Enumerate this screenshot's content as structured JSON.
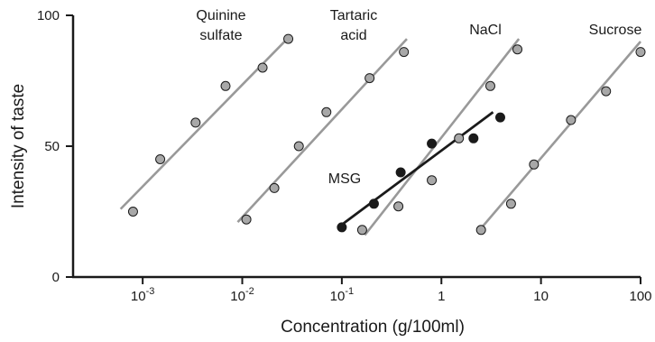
{
  "chart_data": {
    "type": "scatter",
    "title": "",
    "xlabel": "Concentration (g/100ml)",
    "ylabel": "Intensity of taste",
    "x_scale": "log",
    "xlim": [
      0.0002,
      100
    ],
    "ylim": [
      0,
      100
    ],
    "x_ticks": [
      {
        "value": 0.001,
        "base": "10",
        "exp": "-3"
      },
      {
        "value": 0.01,
        "base": "10",
        "exp": "-2"
      },
      {
        "value": 0.1,
        "base": "10",
        "exp": "-1"
      },
      {
        "value": 1,
        "base": "1",
        "exp": ""
      },
      {
        "value": 10,
        "base": "10",
        "exp": ""
      },
      {
        "value": 100,
        "base": "100",
        "exp": ""
      }
    ],
    "y_ticks": [
      0,
      50,
      100
    ],
    "grid": false,
    "series": [
      {
        "name": "Quinine sulfate",
        "label_lines": [
          "Quinine",
          "sulfate"
        ],
        "marker_color": "#a8a8a8",
        "line_color": "#999999",
        "x": [
          0.0008,
          0.0015,
          0.0034,
          0.0068,
          0.016,
          0.029
        ],
        "y": [
          25,
          45,
          59,
          73,
          80,
          91
        ],
        "fit_x": [
          0.0006,
          0.03
        ],
        "fit_y": [
          26,
          92
        ]
      },
      {
        "name": "Tartaric acid",
        "label_lines": [
          "Tartaric",
          "acid"
        ],
        "marker_color": "#a8a8a8",
        "line_color": "#999999",
        "x": [
          0.011,
          0.021,
          0.037,
          0.07,
          0.19,
          0.42
        ],
        "y": [
          22,
          34,
          50,
          63,
          76,
          86
        ],
        "fit_x": [
          0.009,
          0.45
        ],
        "fit_y": [
          21,
          91
        ]
      },
      {
        "name": "NaCl",
        "label_lines": [
          "NaCl"
        ],
        "marker_color": "#a8a8a8",
        "line_color": "#999999",
        "x": [
          0.16,
          0.37,
          0.8,
          1.5,
          3.1,
          5.8
        ],
        "y": [
          18,
          27,
          37,
          53,
          73,
          87
        ],
        "fit_x": [
          0.17,
          6
        ],
        "fit_y": [
          16,
          91
        ]
      },
      {
        "name": "Sucrose",
        "label_lines": [
          "Sucrose"
        ],
        "marker_color": "#a8a8a8",
        "line_color": "#999999",
        "x": [
          2.5,
          5,
          8.5,
          20,
          45,
          100
        ],
        "y": [
          18,
          28,
          43,
          60,
          71,
          86
        ],
        "fit_x": [
          2.3,
          100
        ],
        "fit_y": [
          17,
          90
        ]
      },
      {
        "name": "MSG",
        "label_lines": [
          "MSG"
        ],
        "marker_color": "#1a1a1a",
        "line_color": "#1a1a1a",
        "x": [
          0.1,
          0.21,
          0.39,
          0.8,
          2.1,
          3.9
        ],
        "y": [
          19,
          28,
          40,
          51,
          53,
          61
        ],
        "fit_x": [
          0.1,
          3.3
        ],
        "fit_y": [
          20,
          63
        ]
      }
    ]
  }
}
